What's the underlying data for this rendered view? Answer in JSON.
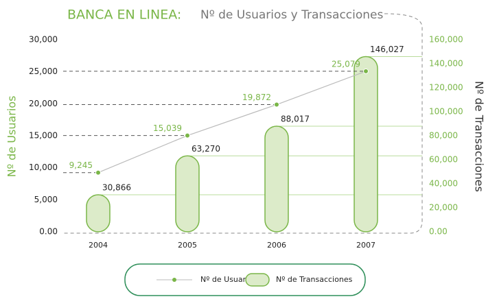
{
  "chart_data": {
    "type": "bar-line",
    "title": "BANCA EN LINEA:",
    "subtitle": "Nº de Usuarios y Transacciones",
    "y_label": "Nº de Usuarios",
    "y2_label": "Nº de Transacciones",
    "categories": [
      "2004",
      "2005",
      "2006",
      "2007"
    ],
    "ylim": [
      0,
      30000
    ],
    "yticks": [
      {
        "value": 0,
        "label": "0.00"
      },
      {
        "value": 5000,
        "label": "5,000"
      },
      {
        "value": 10000,
        "label": "10,000"
      },
      {
        "value": 15000,
        "label": "15,000"
      },
      {
        "value": 20000,
        "label": "20,000"
      },
      {
        "value": 25000,
        "label": "25,000"
      },
      {
        "value": 30000,
        "label": "30,000"
      }
    ],
    "y2lim": [
      0,
      160000
    ],
    "y2ticks": [
      {
        "value": 0,
        "label": "0.00"
      },
      {
        "value": 20000,
        "label": "20,000"
      },
      {
        "value": 40000,
        "label": "40,000"
      },
      {
        "value": 60000,
        "label": "60,000"
      },
      {
        "value": 80000,
        "label": "80,000"
      },
      {
        "value": 100000,
        "label": "100,000"
      },
      {
        "value": 120000,
        "label": "120,000"
      },
      {
        "value": 140000,
        "label": "140,000"
      },
      {
        "value": 160000,
        "label": "160,000"
      }
    ],
    "series": [
      {
        "name": "Nº de Usuario",
        "type": "line",
        "color": "#7ab648",
        "values": [
          9245,
          15039,
          19872,
          25079
        ],
        "value_labels": [
          "9,245",
          "15,039",
          "19,872",
          "25,079"
        ]
      },
      {
        "name": "Nº de Transacciones",
        "type": "bar",
        "axis": "y2",
        "color": "#dcebc9",
        "values": [
          30866,
          63270,
          88017,
          146027
        ],
        "value_labels": [
          "30,866",
          "63,270",
          "88,017",
          "146,027"
        ]
      }
    ],
    "legend": "bottom"
  }
}
